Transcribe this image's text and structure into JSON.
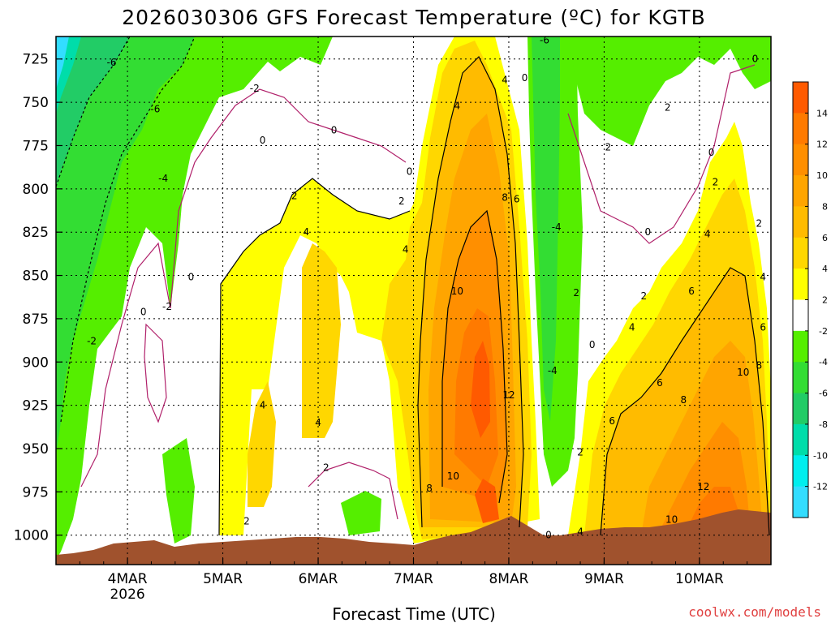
{
  "chart_data": {
    "type": "heatmap",
    "title": "2026030306 GFS Forecast Temperature (ºC) for KGTB",
    "xlabel": "Forecast Time (UTC)",
    "ylabel": "",
    "y_ticks": [
      725,
      750,
      775,
      800,
      825,
      850,
      875,
      900,
      925,
      950,
      975,
      1000
    ],
    "ylim": [
      1017,
      712
    ],
    "x_ticks": [
      {
        "label": "4MAR",
        "sublabel": "2026",
        "t": 18
      },
      {
        "label": "5MAR",
        "sublabel": "",
        "t": 42
      },
      {
        "label": "6MAR",
        "sublabel": "",
        "t": 66
      },
      {
        "label": "7MAR",
        "sublabel": "",
        "t": 90
      },
      {
        "label": "8MAR",
        "sublabel": "",
        "t": 114
      },
      {
        "label": "9MAR",
        "sublabel": "",
        "t": 138
      },
      {
        "label": "10MAR",
        "sublabel": "",
        "t": 162
      }
    ],
    "xlim": [
      0,
      180
    ],
    "colorbar": {
      "levels": [
        14,
        12,
        10,
        8,
        6,
        4,
        2,
        -2,
        -4,
        -6,
        -8,
        -10,
        -12
      ],
      "colors": [
        "#ff5a00",
        "#ff7a00",
        "#ff8f00",
        "#ffa500",
        "#ffbb00",
        "#ffd700",
        "#ffff00",
        "#ffffff",
        "#55ee00",
        "#33dd33",
        "#22cc66",
        "#00ddaa",
        "#00eeee",
        "#33ddff"
      ]
    },
    "contour_labels": [
      {
        "text": "-6",
        "t": 14,
        "p": 727
      },
      {
        "text": "-6",
        "t": 25,
        "p": 754
      },
      {
        "text": "-4",
        "t": 27,
        "p": 794
      },
      {
        "text": "-2",
        "t": 50,
        "p": 742
      },
      {
        "text": "0",
        "t": 52,
        "p": 772
      },
      {
        "text": "0",
        "t": 70,
        "p": 766
      },
      {
        "text": "0",
        "t": 89,
        "p": 790
      },
      {
        "text": "2",
        "t": 60,
        "p": 804
      },
      {
        "text": "2",
        "t": 87,
        "p": 807
      },
      {
        "text": "4",
        "t": 63,
        "p": 825
      },
      {
        "text": "4",
        "t": 88,
        "p": 835
      },
      {
        "text": "4",
        "t": 101,
        "p": 752
      },
      {
        "text": "4",
        "t": 113,
        "p": 737
      },
      {
        "text": "0",
        "t": 118,
        "p": 736
      },
      {
        "text": "-6",
        "t": 123,
        "p": 714
      },
      {
        "text": "8",
        "t": 113,
        "p": 805
      },
      {
        "text": "6",
        "t": 116,
        "p": 806
      },
      {
        "text": "10",
        "t": 101,
        "p": 859
      },
      {
        "text": "12",
        "t": 114,
        "p": 919
      },
      {
        "text": "10",
        "t": 100,
        "p": 966
      },
      {
        "text": "8",
        "t": 94,
        "p": 973
      },
      {
        "text": "-4",
        "t": 126,
        "p": 822
      },
      {
        "text": "2",
        "t": 131,
        "p": 860
      },
      {
        "text": "-4",
        "t": 125,
        "p": 905
      },
      {
        "text": "0",
        "t": 135,
        "p": 890
      },
      {
        "text": "2",
        "t": 132,
        "p": 952
      },
      {
        "text": "0",
        "t": 124,
        "p": 1000
      },
      {
        "text": "4",
        "t": 132,
        "p": 998
      },
      {
        "text": "2",
        "t": 139,
        "p": 776
      },
      {
        "text": "2",
        "t": 154,
        "p": 753
      },
      {
        "text": "0",
        "t": 165,
        "p": 779
      },
      {
        "text": "0",
        "t": 176,
        "p": 725
      },
      {
        "text": "2",
        "t": 166,
        "p": 796
      },
      {
        "text": "0",
        "t": 149,
        "p": 825
      },
      {
        "text": "4",
        "t": 164,
        "p": 826
      },
      {
        "text": "2",
        "t": 177,
        "p": 820
      },
      {
        "text": "2",
        "t": 148,
        "p": 862
      },
      {
        "text": "4",
        "t": 145,
        "p": 880
      },
      {
        "text": "6",
        "t": 160,
        "p": 859
      },
      {
        "text": "4",
        "t": 178,
        "p": 851
      },
      {
        "text": "6",
        "t": 178,
        "p": 880
      },
      {
        "text": "6",
        "t": 152,
        "p": 912
      },
      {
        "text": "6",
        "t": 140,
        "p": 934
      },
      {
        "text": "8",
        "t": 158,
        "p": 922
      },
      {
        "text": "10",
        "t": 173,
        "p": 906
      },
      {
        "text": "8",
        "t": 177,
        "p": 902
      },
      {
        "text": "12",
        "t": 163,
        "p": 972
      },
      {
        "text": "10",
        "t": 155,
        "p": 991
      },
      {
        "text": "-2",
        "t": 9,
        "p": 888
      },
      {
        "text": "0",
        "t": 22,
        "p": 871
      },
      {
        "text": "-2",
        "t": 28,
        "p": 868
      },
      {
        "text": "0",
        "t": 34,
        "p": 851
      },
      {
        "text": "4",
        "t": 52,
        "p": 925
      },
      {
        "text": "4",
        "t": 66,
        "p": 935
      },
      {
        "text": "2",
        "t": 68,
        "p": 961
      },
      {
        "text": "2",
        "t": 48,
        "p": 992
      }
    ]
  },
  "footer": {
    "credit": "coolwx.com/models"
  }
}
